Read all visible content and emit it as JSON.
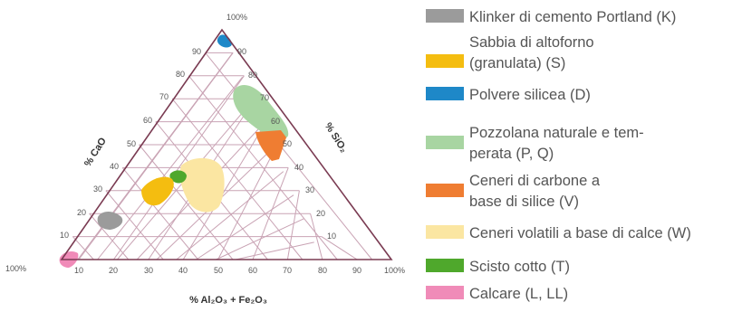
{
  "diagram": {
    "axes": {
      "left_title": "% CaO",
      "right_title": "% SiO₂",
      "bottom_title": "% Al₂O₃ + Fe₂O₃",
      "apex_top_label": "100%",
      "apex_left_label": "100%",
      "apex_right_label": "100%",
      "left_ticks": [
        "90",
        "80",
        "70",
        "60",
        "50",
        "40",
        "30",
        "20",
        "10"
      ],
      "right_ticks": [
        "90",
        "80",
        "70",
        "60",
        "50",
        "40",
        "30",
        "20",
        "10"
      ],
      "bottom_ticks": [
        "10",
        "20",
        "30",
        "40",
        "50",
        "60",
        "70",
        "80",
        "90"
      ]
    },
    "colors": {
      "frame": "#7a3b52",
      "grid": "#c9a3b4"
    }
  },
  "legend": {
    "items": [
      {
        "id": "K",
        "label": "Klinker di cemento Portland (K)",
        "color": "#9b9b9b"
      },
      {
        "id": "S",
        "label": "Sabbia di altoforno (granulata) (S)",
        "color": "#f4bd10"
      },
      {
        "id": "D",
        "label": "Polvere silicea (D)",
        "color": "#1e88c8"
      },
      {
        "id": "PQ",
        "label": "Pozzolana naturale e tem-perata (P, Q)",
        "color": "#a8d5a2"
      },
      {
        "id": "V",
        "label": "Ceneri di carbone a base di silice (V)",
        "color": "#ef7d32"
      },
      {
        "id": "W",
        "label": "Ceneri volatili a base di calce (W)",
        "color": "#fbe6a2"
      },
      {
        "id": "T",
        "label": "Scisto cotto (T)",
        "color": "#4fa82c"
      },
      {
        "id": "LL",
        "label": "Calcare (L, LL)",
        "color": "#f08bb8"
      }
    ]
  }
}
